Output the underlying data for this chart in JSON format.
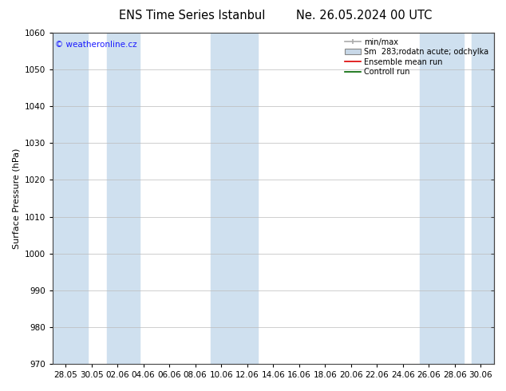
{
  "title_left": "ENS Time Series Istanbul",
  "title_right": "Ne. 26.05.2024 00 UTC",
  "ylabel": "Surface Pressure (hPa)",
  "ylim": [
    970,
    1060
  ],
  "yticks": [
    970,
    980,
    990,
    1000,
    1010,
    1020,
    1030,
    1040,
    1050,
    1060
  ],
  "xtick_labels": [
    "28.05",
    "30.05",
    "02.06",
    "04.06",
    "06.06",
    "08.06",
    "10.06",
    "12.06",
    "14.06",
    "16.06",
    "18.06",
    "20.06",
    "22.06",
    "24.06",
    "26.06",
    "28.06",
    "30.06"
  ],
  "band_color": "#cfe0ef",
  "bg_color": "#ffffff",
  "watermark": "© weatheronline.cz",
  "watermark_color": "#1a1aff",
  "legend_label_minmax": "min/max",
  "legend_label_spread": "Sm  283;rodatn acute; odchylka",
  "legend_label_ensemble": "Ensemble mean run",
  "legend_label_control": "Controll run",
  "color_minmax": "#aaaaaa",
  "color_spread": "#c8d8e8",
  "color_ensemble": "#dd0000",
  "color_control": "#006600",
  "title_fontsize": 10.5,
  "axis_label_fontsize": 8,
  "tick_fontsize": 7.5,
  "legend_fontsize": 7
}
